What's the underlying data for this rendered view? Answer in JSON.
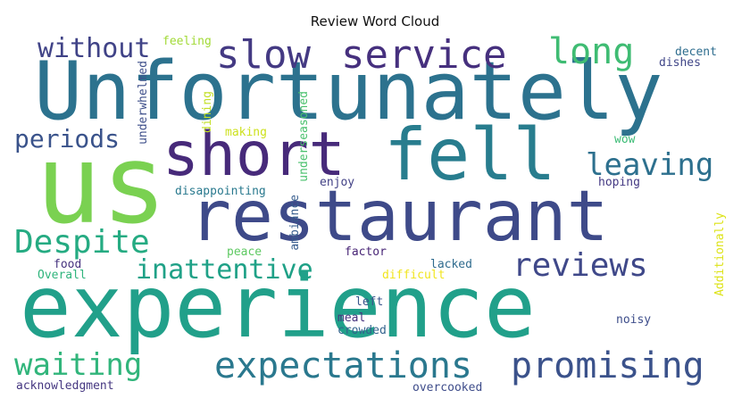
{
  "title": "Review Word Cloud",
  "words": [
    {
      "text": "Unfortunately",
      "color": "#2c728e"
    },
    {
      "text": "experience",
      "color": "#21a08a"
    },
    {
      "text": "restaurant",
      "color": "#3e4a89"
    },
    {
      "text": "us",
      "color": "#7ad151"
    },
    {
      "text": "fell",
      "color": "#287d8e"
    },
    {
      "text": "short",
      "color": "#472a7a"
    },
    {
      "text": "slow",
      "color": "#443a83"
    },
    {
      "text": "service",
      "color": "#46307e"
    },
    {
      "text": "long",
      "color": "#3fbc73"
    },
    {
      "text": "without",
      "color": "#404387"
    },
    {
      "text": "periods",
      "color": "#3a538b"
    },
    {
      "text": "leaving",
      "color": "#2d708e"
    },
    {
      "text": "Despite",
      "color": "#25ab82"
    },
    {
      "text": "inattentive",
      "color": "#1fa187"
    },
    {
      "text": "reviews",
      "color": "#3f4889"
    },
    {
      "text": "waiting",
      "color": "#31b57b"
    },
    {
      "text": "expectations",
      "color": "#2a788e"
    },
    {
      "text": "promising",
      "color": "#3b528b"
    },
    {
      "text": "feeling",
      "color": "#a2da37"
    },
    {
      "text": "decent",
      "color": "#2e6d8e"
    },
    {
      "text": "dishes",
      "color": "#404688"
    },
    {
      "text": "underwhelmed",
      "color": "#3d4e8a"
    },
    {
      "text": "dining",
      "color": "#c2df23"
    },
    {
      "text": "making",
      "color": "#cde11d"
    },
    {
      "text": "underseasoned",
      "color": "#4ac16d"
    },
    {
      "text": "wow",
      "color": "#3bbb75"
    },
    {
      "text": "enjoy",
      "color": "#424186"
    },
    {
      "text": "hoping",
      "color": "#443983"
    },
    {
      "text": "disappointing",
      "color": "#29798e"
    },
    {
      "text": "ambiance",
      "color": "#365c8d"
    },
    {
      "text": "peace",
      "color": "#5ec962"
    },
    {
      "text": "factor",
      "color": "#482576"
    },
    {
      "text": "food",
      "color": "#46337f"
    },
    {
      "text": "Overall",
      "color": "#2fb47c"
    },
    {
      "text": "difficult",
      "color": "#f1e51d"
    },
    {
      "text": "lacked",
      "color": "#2f6b8e"
    },
    {
      "text": "Additionally",
      "color": "#dde318"
    },
    {
      "text": "left",
      "color": "#39568c"
    },
    {
      "text": "meal",
      "color": "#46327e"
    },
    {
      "text": "noisy",
      "color": "#3d4d8a"
    },
    {
      "text": "crowded",
      "color": "#33638d"
    },
    {
      "text": "acknowledgment",
      "color": "#453781"
    },
    {
      "text": "overcooked",
      "color": "#3e4c8a"
    }
  ]
}
